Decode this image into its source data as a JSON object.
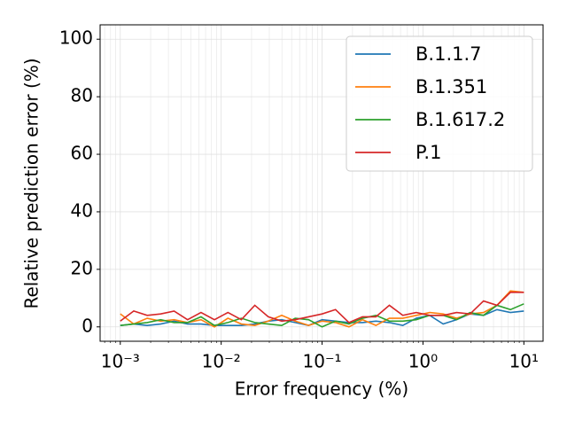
{
  "chart_data": {
    "type": "line",
    "xlabel": "Error frequency (%)",
    "ylabel": "Relative prediction error (%)",
    "x": [
      0.001,
      0.001359,
      0.001848,
      0.002512,
      0.003415,
      0.004642,
      0.00631,
      0.008577,
      0.01166,
      0.01585,
      0.02154,
      0.02929,
      0.03981,
      0.05412,
      0.07356,
      0.1,
      0.1359,
      0.1848,
      0.2512,
      0.3415,
      0.4642,
      0.631,
      0.8577,
      1.166,
      1.585,
      2.154,
      2.929,
      3.981,
      5.412,
      7.356,
      10
    ],
    "series": [
      {
        "name": "B.1.1.7",
        "color": "#1f77b4",
        "values": [
          0.5,
          1,
          0.5,
          1,
          2,
          1,
          1,
          0.5,
          0.5,
          0.5,
          1,
          2,
          2.5,
          1.5,
          0.5,
          2.5,
          2,
          1.5,
          1.5,
          2,
          1.5,
          0.5,
          3,
          4,
          1,
          2.5,
          4.5,
          4,
          6,
          5,
          5.5
        ]
      },
      {
        "name": "B.1.351",
        "color": "#ff7f0e",
        "values": [
          4.5,
          1,
          3,
          2,
          2.5,
          1.5,
          2.5,
          0,
          3,
          1,
          0.5,
          2,
          4,
          2,
          0.5,
          2,
          1.5,
          0,
          2.5,
          0.5,
          3,
          3,
          4,
          5,
          4.5,
          3,
          4.5,
          5,
          7.5,
          12.5,
          12
        ]
      },
      {
        "name": "B.1.617.2",
        "color": "#2ca02c",
        "values": [
          0.5,
          1,
          1.5,
          2.5,
          1.5,
          1.5,
          3.5,
          0.5,
          1.5,
          3,
          1.5,
          1,
          0.5,
          3,
          2.5,
          0,
          2,
          1,
          3,
          4,
          2,
          2,
          2.5,
          4,
          4,
          2.5,
          5,
          4,
          7.5,
          6,
          8
        ]
      },
      {
        "name": "P.1",
        "color": "#d62728",
        "values": [
          2,
          5.5,
          4,
          4.5,
          5.5,
          2.5,
          5,
          2.5,
          5,
          2.5,
          7.5,
          3.5,
          2,
          2.5,
          3.5,
          4.5,
          6,
          1.5,
          3.5,
          3.5,
          7.5,
          4,
          5,
          4,
          4,
          5,
          4.5,
          9,
          7.5,
          12,
          12
        ]
      }
    ],
    "xscale": "log",
    "xlim": [
      0.000631,
      15.5
    ],
    "xticks": [
      {
        "value": 0.001,
        "label": "10⁻³"
      },
      {
        "value": 0.01,
        "label": "10⁻²"
      },
      {
        "value": 0.1,
        "label": "10⁻¹"
      },
      {
        "value": 1,
        "label": "10⁰"
      },
      {
        "value": 10,
        "label": "10¹"
      }
    ],
    "ylim": [
      -5,
      105
    ],
    "yticks": [
      0,
      20,
      40,
      60,
      80,
      100
    ],
    "grid": true,
    "minor_grid": true,
    "legend": "upper right"
  }
}
